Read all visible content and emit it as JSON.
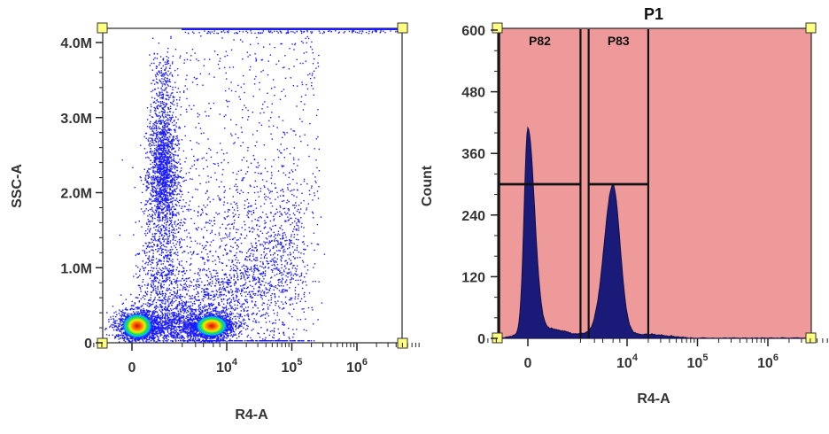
{
  "chart_data": [
    {
      "type": "scatter",
      "title": "",
      "xlabel": "R4-A",
      "ylabel": "SSC-A",
      "x_scale": "biexponential",
      "y_scale": "linear",
      "x_ticks": [
        {
          "value": 0,
          "base": "0",
          "exp": ""
        },
        {
          "value": 10000,
          "base": "10",
          "exp": "4"
        },
        {
          "value": 100000,
          "base": "10",
          "exp": "5"
        },
        {
          "value": 1000000,
          "base": "10",
          "exp": "6"
        }
      ],
      "y_ticks": [
        {
          "value": 0,
          "label": "0"
        },
        {
          "value": 1000000,
          "label": "1.0M"
        },
        {
          "value": 2000000,
          "label": "2.0M"
        },
        {
          "value": 3000000,
          "label": "3.0M"
        },
        {
          "value": 4000000,
          "label": "4.0M"
        }
      ],
      "ylim": [
        0,
        4200000
      ],
      "populations": [
        {
          "name_hint": "negative",
          "center_x": 0,
          "center_ssc": 200000,
          "density": "high"
        },
        {
          "name_hint": "positive",
          "center_x": 5000,
          "center_ssc": 200000,
          "density": "high"
        },
        {
          "name_hint": "high-SSC",
          "center_x": 150,
          "center_ssc": 2300000,
          "density": "medium"
        }
      ],
      "point_color": "#1a1aff"
    },
    {
      "type": "histogram",
      "title": "P1",
      "xlabel": "R4-A",
      "ylabel": "Count",
      "x_scale": "biexponential",
      "x_ticks": [
        {
          "value": 0,
          "base": "0",
          "exp": ""
        },
        {
          "value": 10000,
          "base": "10",
          "exp": "4"
        },
        {
          "value": 100000,
          "base": "10",
          "exp": "5"
        },
        {
          "value": 1000000,
          "base": "10",
          "exp": "6"
        }
      ],
      "y_ticks": [
        {
          "value": 0,
          "label": "0"
        },
        {
          "value": 120,
          "label": "120"
        },
        {
          "value": 240,
          "label": "240"
        },
        {
          "value": 360,
          "label": "360"
        },
        {
          "value": 480,
          "label": "480"
        },
        {
          "value": 600,
          "label": "600"
        }
      ],
      "ylim": [
        0,
        600
      ],
      "peaks": [
        {
          "center_x": 0,
          "count": 400
        },
        {
          "center_x": 5000,
          "count": 290
        }
      ],
      "gates": [
        {
          "label": "P82",
          "x_range": [
            -300,
            1000
          ],
          "bar_count": 300
        },
        {
          "label": "P83",
          "x_range": [
            1500,
            20000
          ],
          "bar_count": 300
        }
      ],
      "background_color": "#ee9a9a",
      "fill_color": "#1a1a78"
    }
  ]
}
